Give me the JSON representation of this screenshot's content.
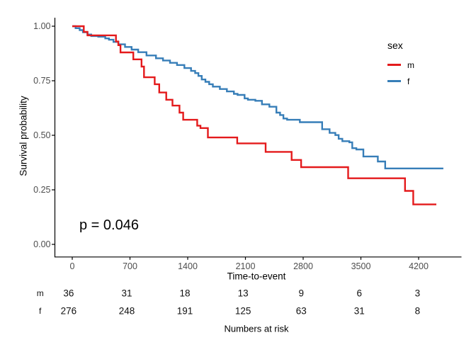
{
  "chart_data": {
    "type": "line",
    "subtype": "kaplan-meier-step",
    "xlabel": "Time-to-event",
    "ylabel": "Survival probability",
    "pvalue_text": "p = 0.046",
    "xlim": [
      0,
      4600
    ],
    "ylim": [
      0,
      1
    ],
    "x_ticks": [
      0,
      700,
      1400,
      2100,
      2800,
      3500,
      4200
    ],
    "x_tick_labels": [
      "0",
      "700",
      "1400",
      "2100",
      "2800",
      "3500",
      "4200"
    ],
    "y_ticks": [
      0,
      0.25,
      0.5,
      0.75,
      1
    ],
    "y_tick_labels": [
      "0.00",
      "0.25",
      "0.50",
      "0.75",
      "1.00"
    ],
    "grid": "off",
    "legend": {
      "title": "sex",
      "position": "right",
      "entries": [
        {
          "label": "m",
          "color": "#E41A1C"
        },
        {
          "label": "f",
          "color": "#377EB8"
        }
      ]
    },
    "series": [
      {
        "name": "m",
        "color": "#E41A1C",
        "end_time": 4415,
        "steps": [
          [
            0,
            1.0
          ],
          [
            140,
            0.974
          ],
          [
            185,
            0.958
          ],
          [
            530,
            0.93
          ],
          [
            558,
            0.913
          ],
          [
            585,
            0.88
          ],
          [
            740,
            0.848
          ],
          [
            840,
            0.815
          ],
          [
            870,
            0.766
          ],
          [
            1000,
            0.734
          ],
          [
            1055,
            0.696
          ],
          [
            1140,
            0.663
          ],
          [
            1215,
            0.636
          ],
          [
            1300,
            0.604
          ],
          [
            1345,
            0.571
          ],
          [
            1515,
            0.544
          ],
          [
            1555,
            0.533
          ],
          [
            1645,
            0.49
          ],
          [
            2000,
            0.463
          ],
          [
            2345,
            0.424
          ],
          [
            2660,
            0.387
          ],
          [
            2775,
            0.354
          ],
          [
            3345,
            0.303
          ],
          [
            4035,
            0.245
          ],
          [
            4135,
            0.183
          ]
        ]
      },
      {
        "name": "f",
        "color": "#377EB8",
        "end_time": 4500,
        "steps": [
          [
            0,
            1.0
          ],
          [
            40,
            0.991
          ],
          [
            90,
            0.982
          ],
          [
            130,
            0.972
          ],
          [
            185,
            0.962
          ],
          [
            230,
            0.955
          ],
          [
            315,
            0.952
          ],
          [
            400,
            0.944
          ],
          [
            445,
            0.938
          ],
          [
            500,
            0.928
          ],
          [
            560,
            0.917
          ],
          [
            640,
            0.905
          ],
          [
            720,
            0.893
          ],
          [
            800,
            0.881
          ],
          [
            900,
            0.866
          ],
          [
            1015,
            0.853
          ],
          [
            1100,
            0.843
          ],
          [
            1185,
            0.832
          ],
          [
            1270,
            0.822
          ],
          [
            1360,
            0.808
          ],
          [
            1440,
            0.795
          ],
          [
            1490,
            0.785
          ],
          [
            1530,
            0.772
          ],
          [
            1570,
            0.756
          ],
          [
            1615,
            0.745
          ],
          [
            1660,
            0.734
          ],
          [
            1705,
            0.723
          ],
          [
            1790,
            0.712
          ],
          [
            1875,
            0.701
          ],
          [
            1960,
            0.69
          ],
          [
            2005,
            0.685
          ],
          [
            2090,
            0.669
          ],
          [
            2130,
            0.663
          ],
          [
            2220,
            0.658
          ],
          [
            2300,
            0.642
          ],
          [
            2390,
            0.631
          ],
          [
            2475,
            0.604
          ],
          [
            2520,
            0.593
          ],
          [
            2560,
            0.577
          ],
          [
            2605,
            0.571
          ],
          [
            2760,
            0.56
          ],
          [
            3030,
            0.528
          ],
          [
            3120,
            0.511
          ],
          [
            3190,
            0.501
          ],
          [
            3230,
            0.484
          ],
          [
            3275,
            0.473
          ],
          [
            3360,
            0.468
          ],
          [
            3395,
            0.441
          ],
          [
            3445,
            0.435
          ],
          [
            3530,
            0.403
          ],
          [
            3705,
            0.38
          ],
          [
            3795,
            0.348
          ]
        ]
      }
    ],
    "risk_table": {
      "caption": "Numbers at risk",
      "time_points": [
        0,
        700,
        1400,
        2100,
        2800,
        3500,
        4200
      ],
      "rows": [
        {
          "label": "m",
          "counts": [
            36,
            31,
            18,
            13,
            9,
            6,
            3
          ]
        },
        {
          "label": "f",
          "counts": [
            276,
            248,
            191,
            125,
            63,
            31,
            8
          ]
        }
      ]
    },
    "axis_color": "#000000",
    "tick_text_color": "#4d4d4d"
  }
}
